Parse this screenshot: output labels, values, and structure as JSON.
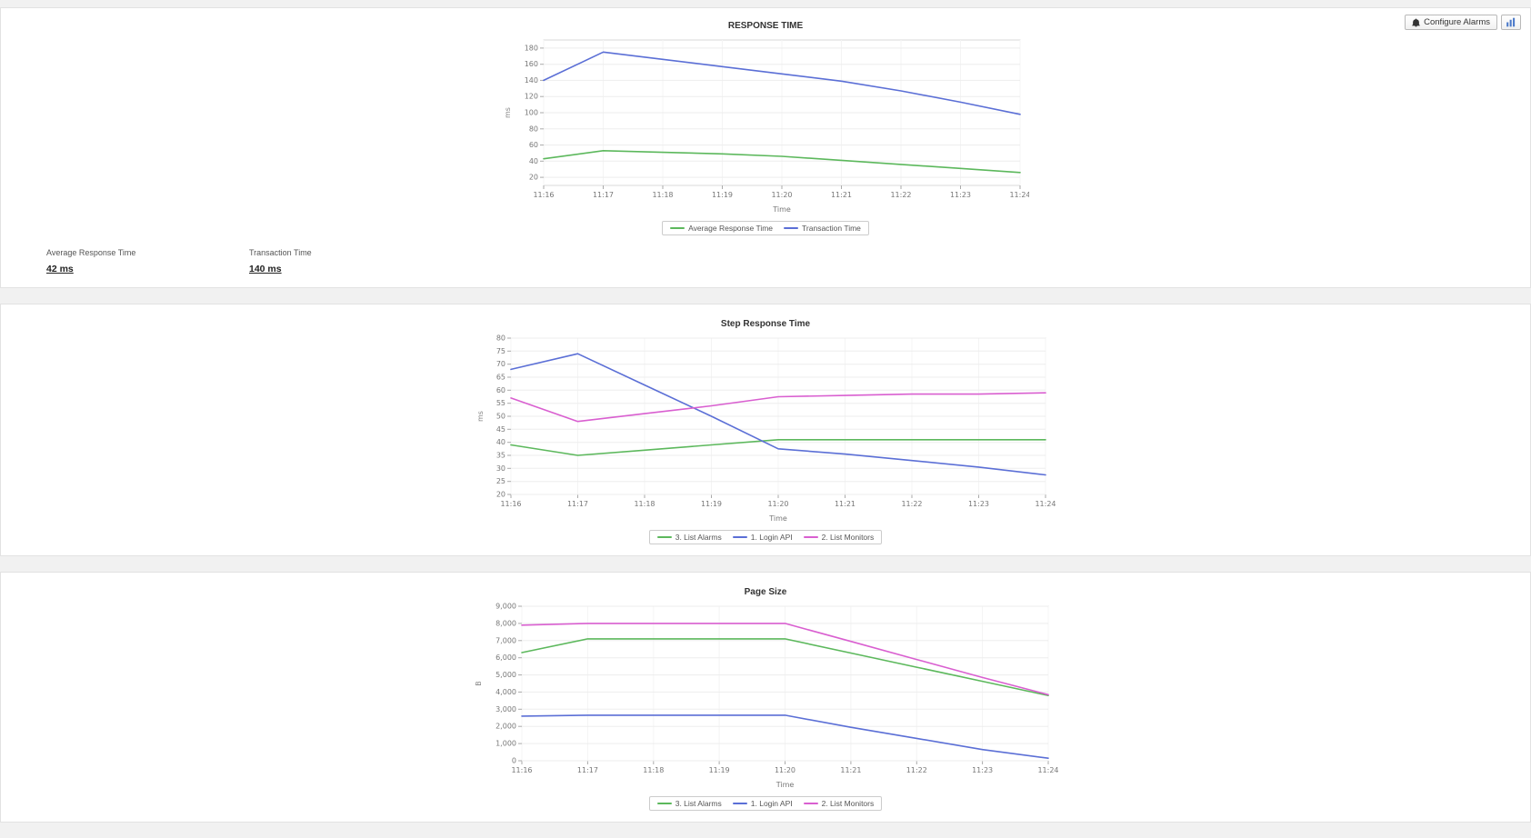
{
  "header": {
    "configure_alarms_label": "Configure Alarms"
  },
  "stats": [
    {
      "label": "Average Response Time",
      "value": "42 ms"
    },
    {
      "label": "Transaction Time",
      "value": "140 ms"
    }
  ],
  "colors": {
    "green": "#5cb85c",
    "blue": "#5b6fd6",
    "magenta": "#d95fd0"
  },
  "chart_data": [
    {
      "type": "line",
      "title": "RESPONSE TIME",
      "xlabel": "Time",
      "ylabel": "ms",
      "x": [
        "11:16",
        "11:17",
        "11:18",
        "11:19",
        "11:20",
        "11:21",
        "11:22",
        "11:23",
        "11:24"
      ],
      "yticks": [
        20,
        40,
        60,
        80,
        100,
        120,
        140,
        160,
        180
      ],
      "ylim": [
        10,
        190
      ],
      "grid": true,
      "legend_position": "bottom",
      "series": [
        {
          "name": "Average Response Time",
          "color": "#5cb85c",
          "values": [
            43,
            53,
            51,
            49,
            46,
            41,
            36,
            31,
            26
          ]
        },
        {
          "name": "Transaction Time",
          "color": "#5b6fd6",
          "values": [
            140,
            175,
            166,
            157,
            148,
            139,
            127,
            113,
            98
          ]
        }
      ]
    },
    {
      "type": "line",
      "title": "Step Response Time",
      "xlabel": "Time",
      "ylabel": "ms",
      "x": [
        "11:16",
        "11:17",
        "11:18",
        "11:19",
        "11:20",
        "11:21",
        "11:22",
        "11:23",
        "11:24"
      ],
      "yticks": [
        20,
        25,
        30,
        35,
        40,
        45,
        50,
        55,
        60,
        65,
        70,
        75,
        80
      ],
      "ylim": [
        20,
        80
      ],
      "grid": true,
      "legend_position": "bottom",
      "series": [
        {
          "name": "3. List Alarms",
          "color": "#5cb85c",
          "values": [
            39,
            35,
            37,
            39,
            41,
            41,
            41,
            41,
            41
          ]
        },
        {
          "name": "1. Login API",
          "color": "#5b6fd6",
          "values": [
            68,
            74,
            62,
            50,
            37.5,
            35.5,
            33,
            30.5,
            27.5
          ]
        },
        {
          "name": "2. List Monitors",
          "color": "#d95fd0",
          "values": [
            57,
            48,
            51,
            54,
            57.5,
            58,
            58.5,
            58.5,
            59
          ]
        }
      ]
    },
    {
      "type": "line",
      "title": "Page Size",
      "xlabel": "Time",
      "ylabel": "B",
      "x": [
        "11:16",
        "11:17",
        "11:18",
        "11:19",
        "11:20",
        "11:21",
        "11:22",
        "11:23",
        "11:24"
      ],
      "yticks": [
        0,
        1000,
        2000,
        3000,
        4000,
        5000,
        6000,
        7000,
        8000,
        9000
      ],
      "ylim": [
        0,
        9000
      ],
      "grid": true,
      "legend_position": "bottom",
      "series": [
        {
          "name": "3. List Alarms",
          "color": "#5cb85c",
          "values": [
            6300,
            7100,
            7100,
            7100,
            7100,
            6275,
            5450,
            4625,
            3800
          ]
        },
        {
          "name": "1. Login API",
          "color": "#5b6fd6",
          "values": [
            2600,
            2650,
            2650,
            2650,
            2650,
            1950,
            1300,
            650,
            150
          ]
        },
        {
          "name": "2. List Monitors",
          "color": "#d95fd0",
          "values": [
            7900,
            8000,
            8000,
            8000,
            8000,
            6950,
            5900,
            4850,
            3850
          ]
        }
      ]
    }
  ]
}
